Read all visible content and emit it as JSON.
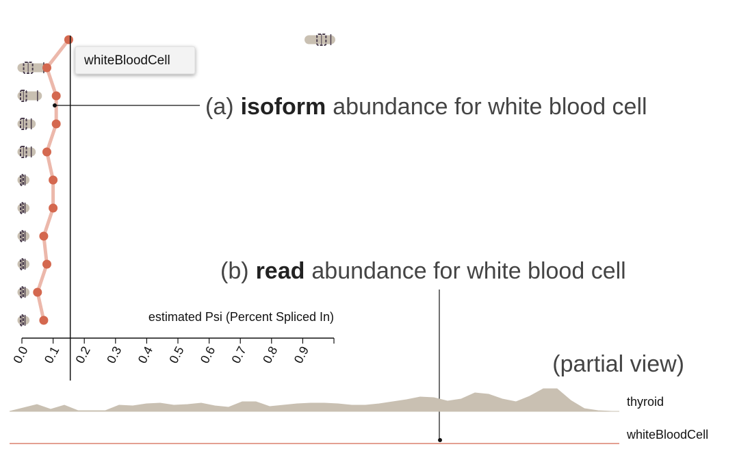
{
  "chart_data": {
    "type": "dot-box",
    "x_label": "estimated Psi (Percent Spliced In)",
    "xlim": [
      0,
      1
    ],
    "xticks": [
      {
        "value": 0,
        "label": "0.0"
      },
      0.1,
      0.2,
      0.3,
      0.4,
      0.5,
      0.6,
      0.7,
      0.8,
      0.9
    ],
    "series": [
      {
        "name": "whiteBloodCell",
        "color": "#d4684f",
        "line_color": "#ecb8ab",
        "values": [
          0.15,
          0.08,
          0.11,
          0.11,
          0.08,
          0.1,
          0.1,
          0.07,
          0.08,
          0.05,
          0.07
        ]
      }
    ],
    "boxes": {
      "color": "#c9c0b2",
      "edge": "#4a3d4d",
      "low": [
        0.92,
        0,
        0,
        0,
        0,
        0,
        0,
        0,
        0,
        0,
        0
      ],
      "q1": [
        0.95,
        0.01,
        0,
        0,
        0,
        0,
        0,
        0,
        0,
        0,
        0
      ],
      "median": [
        0.96,
        0.02,
        0.005,
        0.005,
        0.005,
        0,
        0,
        0,
        0,
        0,
        0
      ],
      "q3": [
        0.97,
        0.03,
        0.01,
        0.01,
        0.01,
        0,
        0,
        0,
        0,
        0,
        0
      ],
      "high": [
        0.99,
        0.07,
        0.05,
        0.03,
        0.03,
        0.01,
        0.01,
        0.01,
        0.01,
        0.01,
        0.01
      ]
    },
    "marker": 0.155,
    "tracks": [
      {
        "name": "thyroid",
        "color": "#c9c0b2",
        "values": [
          0,
          5,
          10,
          3,
          9,
          1,
          1,
          1,
          9,
          8,
          11,
          12,
          9,
          10,
          12,
          8,
          6,
          14,
          14,
          7,
          9,
          11,
          12,
          12,
          11,
          9,
          9,
          11,
          14,
          17,
          21,
          20,
          15,
          18,
          27,
          25,
          18,
          14,
          22,
          33,
          33,
          16,
          4,
          1,
          0
        ]
      },
      {
        "name": "whiteBloodCell",
        "color": "#d4684f"
      }
    ]
  },
  "annotations": [
    {
      "prefix": "(a)",
      "bold": "isoform",
      "suffix": "abundance for white blood cell"
    },
    {
      "prefix": "(b)",
      "bold": "read",
      "suffix": "abundance for white blood cell"
    }
  ],
  "partial_view": "(partial view)"
}
